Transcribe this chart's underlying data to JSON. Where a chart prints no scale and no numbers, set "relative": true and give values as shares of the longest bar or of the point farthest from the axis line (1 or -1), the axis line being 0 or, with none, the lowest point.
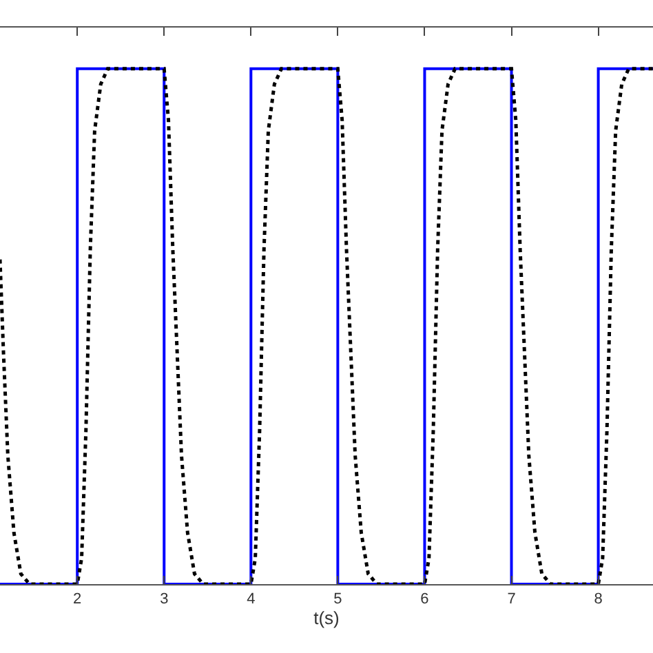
{
  "chart_data": {
    "type": "line",
    "xlabel": "t(s)",
    "relative": true,
    "xlim": [
      1.11,
      8.63
    ],
    "xticks": [
      2,
      3,
      4,
      5,
      6,
      7,
      8
    ],
    "series": [
      {
        "color": "#0000ff",
        "line_style": "solid",
        "x": [
          1.11,
          2,
          2,
          3,
          3,
          4,
          4,
          5,
          5,
          6,
          6,
          7,
          7,
          8,
          8,
          8.63
        ],
        "values": [
          0,
          0,
          1,
          1,
          0,
          0,
          1,
          1,
          0,
          0,
          1,
          1,
          0,
          0,
          1,
          1
        ]
      },
      {
        "color": "#000000",
        "line_style": "dotted",
        "x": [
          1.11,
          1.15,
          1.2,
          1.27,
          1.35,
          1.45,
          2.0,
          2.05,
          2.1,
          2.15,
          2.2,
          2.27,
          2.35,
          3.0,
          3.05,
          3.1,
          3.15,
          3.2,
          3.27,
          3.35,
          3.45,
          4.0,
          4.05,
          4.1,
          4.15,
          4.2,
          4.27,
          4.35,
          5.0,
          5.05,
          5.1,
          5.15,
          5.2,
          5.27,
          5.35,
          5.45,
          6.0,
          6.05,
          6.1,
          6.15,
          6.2,
          6.27,
          6.35,
          7.0,
          7.05,
          7.1,
          7.15,
          7.2,
          7.27,
          7.35,
          7.45,
          8.0,
          8.05,
          8.1,
          8.15,
          8.2,
          8.27,
          8.35,
          8.63
        ],
        "values": [
          0.63,
          0.45,
          0.25,
          0.1,
          0.02,
          0,
          0,
          0.05,
          0.3,
          0.65,
          0.88,
          0.97,
          1,
          1,
          0.9,
          0.65,
          0.45,
          0.25,
          0.1,
          0.02,
          0,
          0,
          0.05,
          0.3,
          0.65,
          0.88,
          0.97,
          1,
          1,
          0.9,
          0.65,
          0.45,
          0.25,
          0.1,
          0.02,
          0,
          0,
          0.05,
          0.3,
          0.65,
          0.88,
          0.97,
          1,
          1,
          0.9,
          0.65,
          0.45,
          0.25,
          0.1,
          0.02,
          0,
          0,
          0.05,
          0.3,
          0.65,
          0.88,
          0.97,
          1,
          1
        ]
      }
    ]
  }
}
